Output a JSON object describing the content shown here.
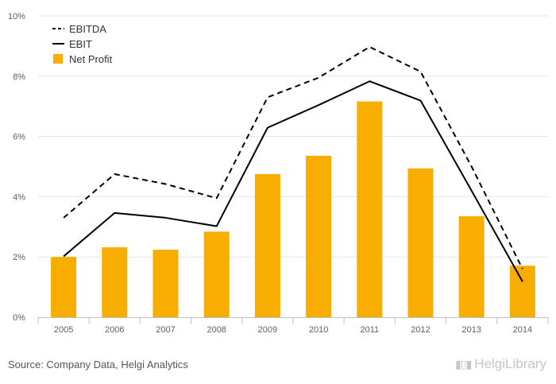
{
  "chart_data": {
    "type": "bar",
    "categories": [
      "2005",
      "2006",
      "2007",
      "2008",
      "2009",
      "2010",
      "2011",
      "2012",
      "2013",
      "2014"
    ],
    "ylim": [
      0,
      10
    ],
    "yticks": [
      0,
      2,
      4,
      6,
      8,
      10
    ],
    "ytick_labels": [
      "0%",
      "2%",
      "4%",
      "6%",
      "8%",
      "10%"
    ],
    "grid": true,
    "legend_position": "top-left",
    "series": [
      {
        "name": "EBITDA",
        "kind": "line-dashed",
        "color": "#000000",
        "values": [
          3.3,
          4.75,
          4.42,
          3.95,
          7.3,
          7.95,
          8.97,
          8.15,
          5.0,
          1.6
        ]
      },
      {
        "name": "EBIT",
        "kind": "line",
        "color": "#000000",
        "values": [
          2.02,
          3.46,
          3.3,
          3.02,
          6.29,
          7.04,
          7.83,
          7.19,
          4.2,
          1.18
        ]
      },
      {
        "name": "Net Profit",
        "kind": "bar",
        "color": "#f7ae00",
        "values": [
          2.0,
          2.32,
          2.24,
          2.84,
          4.75,
          5.36,
          7.16,
          4.94,
          3.35,
          1.71
        ]
      }
    ]
  },
  "footer": {
    "source": "Source: Company Data, Helgi Analytics",
    "brand": "HelgiLibrary"
  }
}
